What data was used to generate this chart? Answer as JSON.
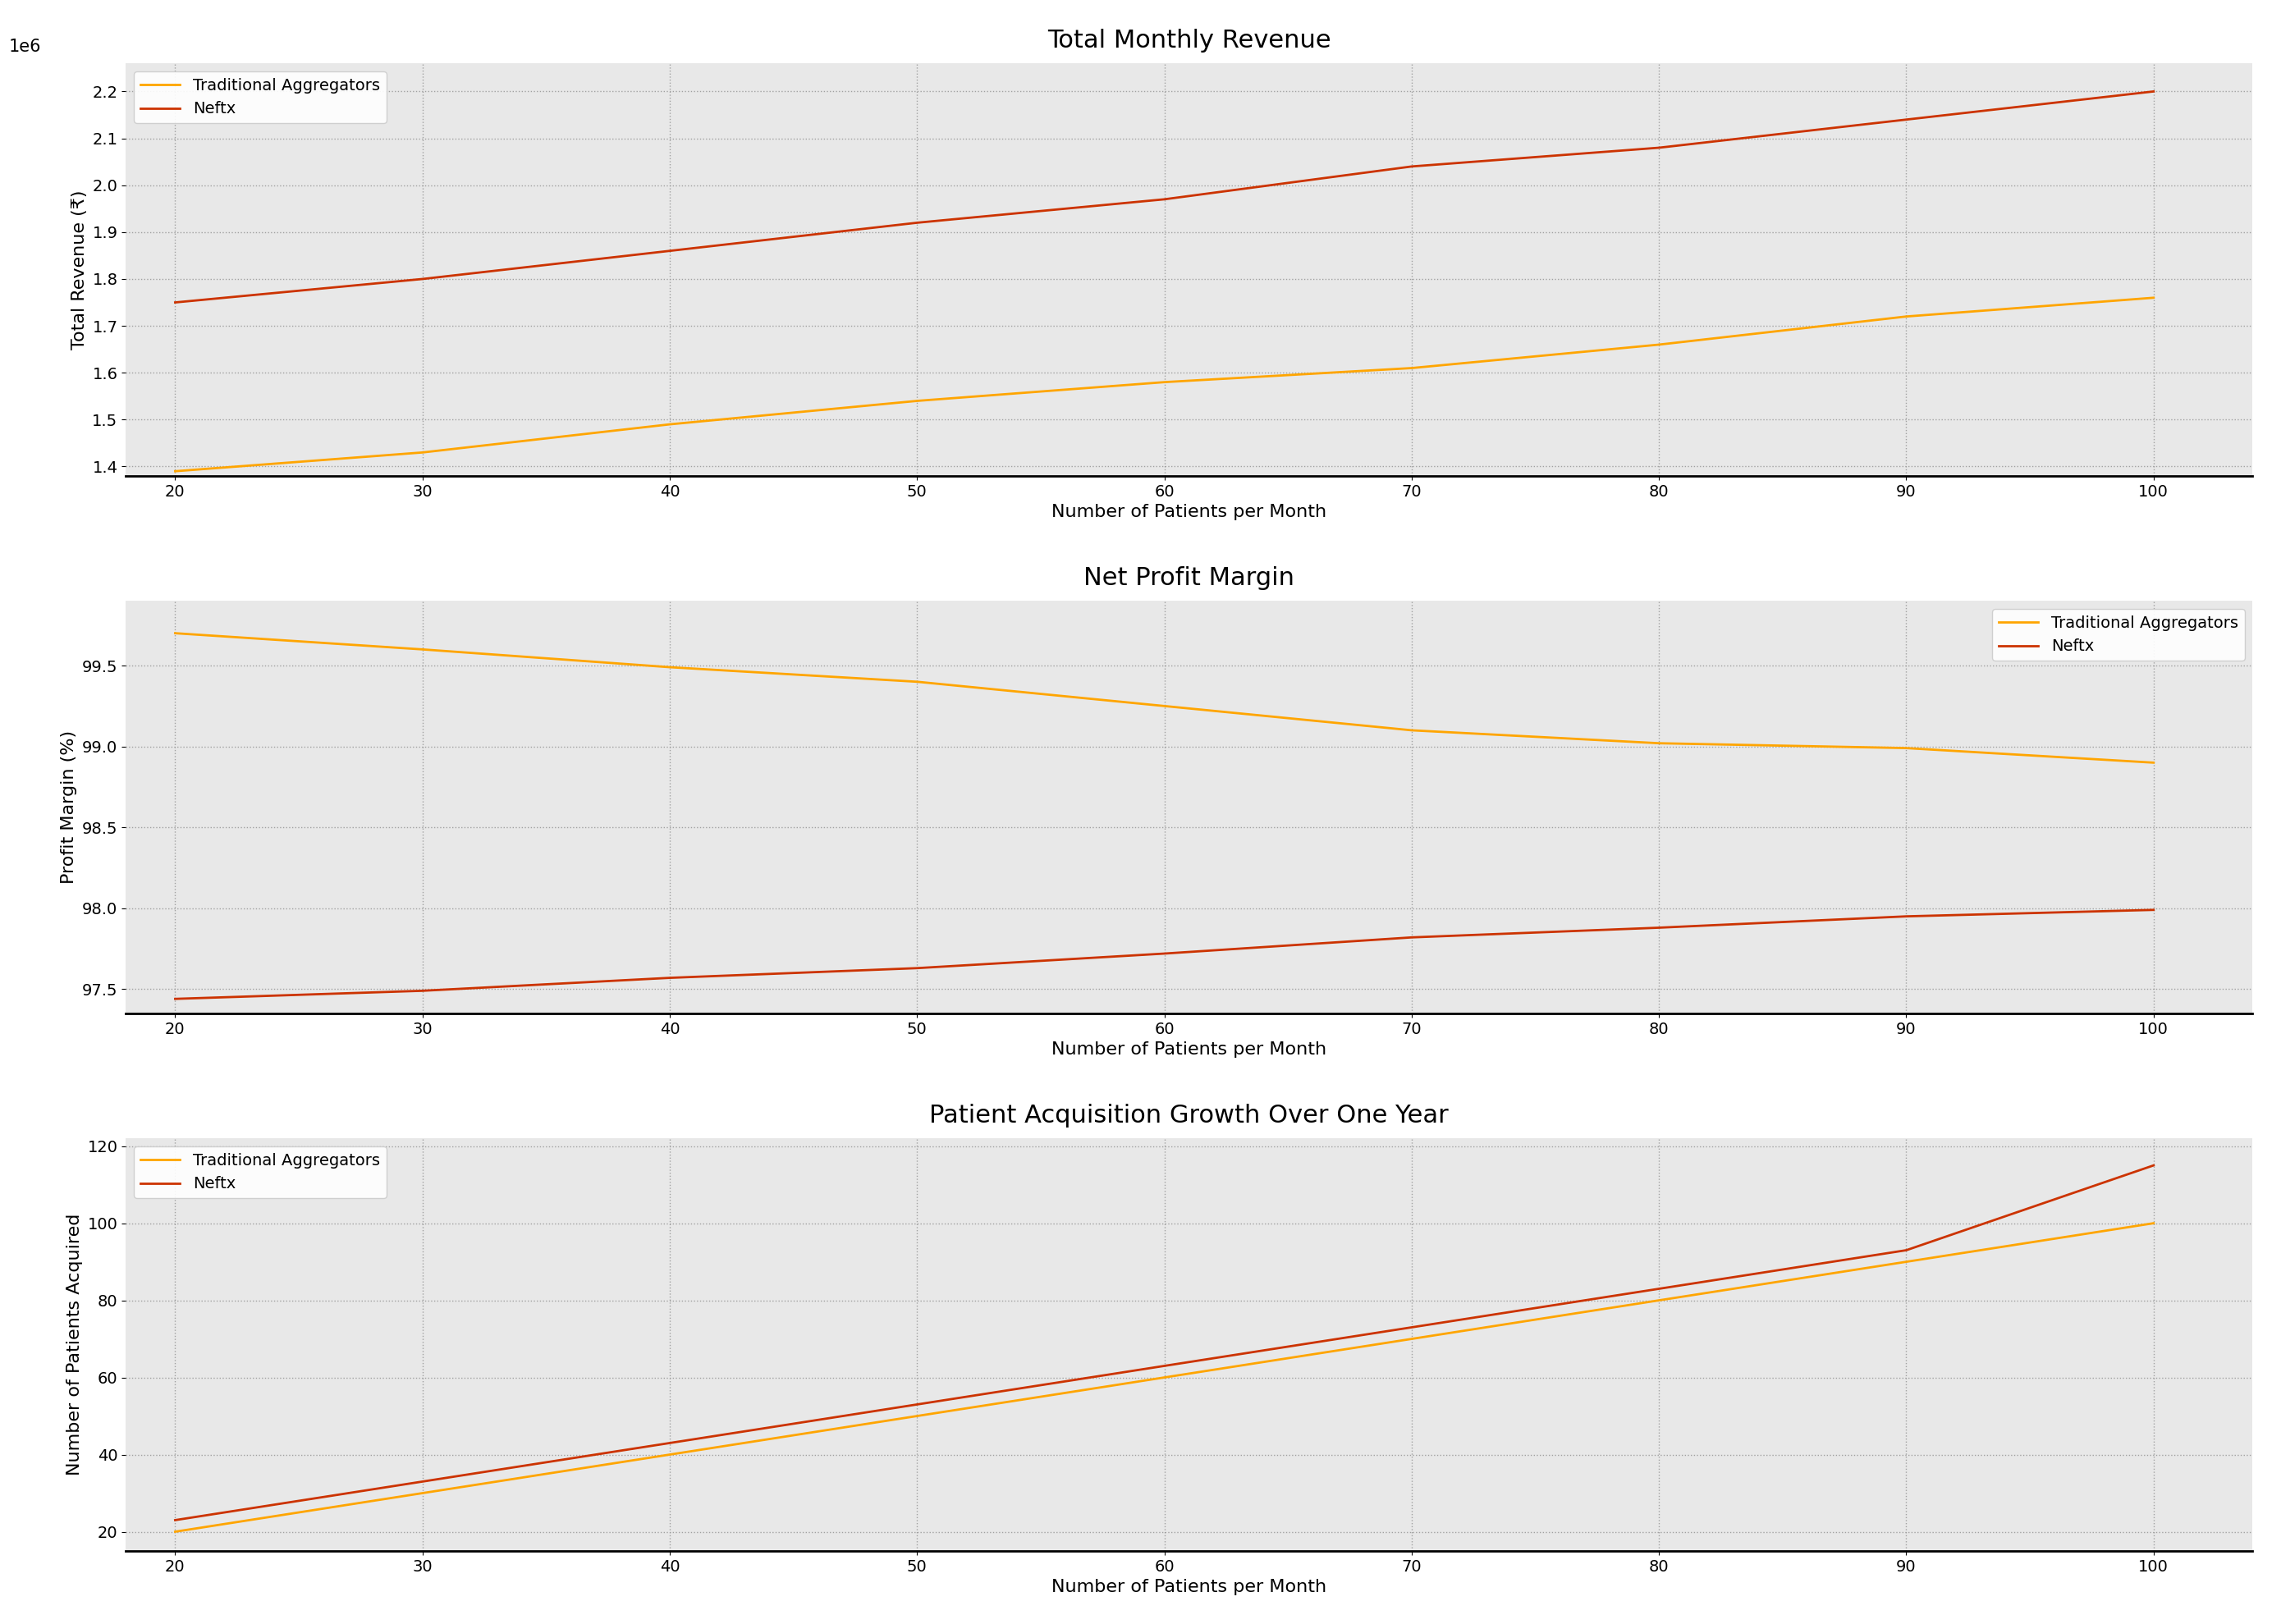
{
  "x": [
    20,
    30,
    40,
    50,
    60,
    70,
    80,
    90,
    100
  ],
  "plot1_title": "Total Monthly Revenue",
  "plot1_ylabel": "Total Revenue (₹)",
  "plot1_trad": [
    1390000,
    1430000,
    1490000,
    1540000,
    1580000,
    1610000,
    1660000,
    1720000,
    1760000
  ],
  "plot1_neftx": [
    1750000,
    1800000,
    1860000,
    1920000,
    1970000,
    2040000,
    2080000,
    2140000,
    2200000
  ],
  "plot2_title": "Net Profit Margin",
  "plot2_ylabel": "Profit Margin (%)",
  "plot2_trad": [
    99.7,
    99.6,
    99.49,
    99.4,
    99.25,
    99.1,
    99.02,
    98.99,
    98.9
  ],
  "plot2_neftx": [
    97.44,
    97.49,
    97.57,
    97.63,
    97.72,
    97.82,
    97.88,
    97.95,
    97.99
  ],
  "plot3_title": "Patient Acquisition Growth Over One Year",
  "plot3_ylabel": "Number of Patients Acquired",
  "plot3_trad": [
    20,
    30,
    40,
    50,
    60,
    70,
    80,
    90,
    100
  ],
  "plot3_neftx": [
    23,
    33,
    43,
    53,
    63,
    73,
    83,
    93,
    115
  ],
  "xlabel": "Number of Patients per Month",
  "trad_color": "#FFA500",
  "neftx_color": "#CC3300",
  "trad_label": "Traditional Aggregators",
  "neftx_label": "Neftx",
  "bg_color": "#ffffff",
  "plot_bg_color": "#e8e8e8",
  "line_width": 2.0,
  "grid_color": "#999999",
  "title_fontsize": 22,
  "label_fontsize": 16,
  "tick_fontsize": 14,
  "legend_fontsize": 14,
  "plot1_ylim": [
    1380000.0,
    2260000.0
  ],
  "plot2_ylim": [
    97.35,
    99.9
  ],
  "plot3_ylim": [
    15,
    122
  ]
}
